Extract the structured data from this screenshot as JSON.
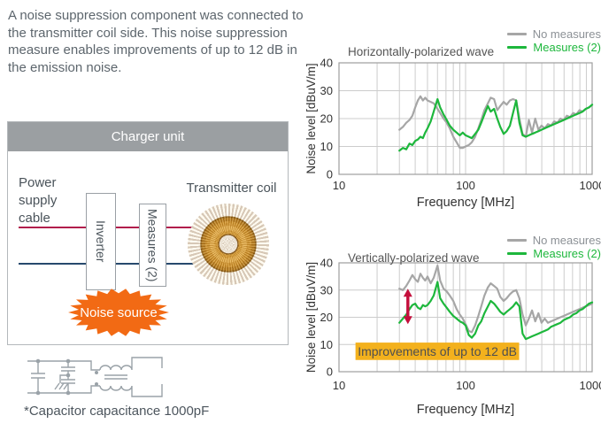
{
  "intro": {
    "text": "A noise suppression component was connected to the transmitter coil side. This noise suppression measure enables improvements of up to 12 dB in the emission noise."
  },
  "diagram": {
    "header": "Charger unit",
    "power_label_lines": [
      "Power",
      "supply",
      "cable"
    ],
    "inverter_label": "Inverter",
    "measures_label": "Measures (2)",
    "transmitter_label": "Transmitter coil",
    "noise_label": "Noise source"
  },
  "schematic": {
    "caption": "*Capacitor capacitance 1000pF"
  },
  "colors": {
    "header_bg": "#9b9fa2",
    "wire_top": "#b11e4c",
    "wire_bottom": "#27496d",
    "noise_orange": "#f26a14",
    "coil_gold": "#d8952e",
    "gray_series": "#a6a6a6",
    "green_series": "#1db73c",
    "arrow_red": "#c40f3c",
    "callout_amber": "#f3b11d",
    "grid": "#cccccc",
    "plot_border": "#9e9e9e",
    "axis_text": "#333333"
  },
  "chart_data": [
    {
      "type": "line",
      "title": "Horizontally-polarized wave",
      "xlabel": "Frequency [MHz]",
      "ylabel": "Noise level [dBuV/m]",
      "xscale": "log",
      "xlim": [
        10,
        1000
      ],
      "ylim": [
        0,
        40
      ],
      "xticks": [
        10,
        100,
        1000
      ],
      "yticks": [
        0,
        10,
        20,
        30,
        40
      ],
      "grid": true,
      "legend_position": "top-right",
      "x": [
        30,
        32,
        34,
        36,
        38,
        40,
        42,
        44,
        46,
        48,
        50,
        53,
        56,
        60,
        63,
        67,
        71,
        75,
        80,
        85,
        90,
        95,
        100,
        106,
        112,
        119,
        126,
        133,
        141,
        150,
        158,
        168,
        178,
        188,
        200,
        211,
        224,
        237,
        251,
        266,
        282,
        299,
        316,
        335,
        355,
        376,
        398,
        422,
        447,
        473,
        501,
        531,
        562,
        596,
        631,
        668,
        708,
        750,
        794,
        841,
        891,
        944,
        1000
      ],
      "series": [
        {
          "name": "No measures",
          "color": "#a6a6a6",
          "y": [
            16,
            17,
            18.5,
            19.5,
            21,
            24,
            26.5,
            28,
            26.5,
            27.5,
            26.5,
            26,
            25.5,
            23.5,
            22,
            20,
            18.5,
            16.5,
            13.5,
            11.5,
            9.5,
            9.5,
            10,
            10.5,
            11.5,
            13.5,
            16.5,
            19.5,
            23,
            25.5,
            27.5,
            27,
            23,
            24.5,
            26,
            25,
            26.5,
            27,
            26.5,
            20,
            14.5,
            13.5,
            19.5,
            15,
            20,
            16,
            17.5,
            16.5,
            18,
            17.5,
            19,
            18.5,
            20,
            19.5,
            21,
            20.5,
            22,
            21.5,
            23,
            22.5,
            23.5,
            24,
            25
          ]
        },
        {
          "name": "Measures (2)",
          "color": "#1db73c",
          "y": [
            8.5,
            9.5,
            9,
            11,
            10.5,
            12,
            12.5,
            13.5,
            13,
            15,
            16.5,
            19,
            22.5,
            27,
            24,
            21.5,
            19.5,
            17.5,
            16,
            15,
            14,
            15,
            14,
            13.5,
            13,
            14.5,
            16,
            18.5,
            21.5,
            24.5,
            22.5,
            23.5,
            20,
            17,
            14.5,
            15.5,
            17.5,
            22,
            26.5,
            18.5,
            14,
            13.5,
            14,
            14.5,
            15,
            15.5,
            16,
            16.5,
            17,
            17.5,
            18,
            18.5,
            19,
            19.5,
            20,
            20.5,
            21,
            21.5,
            22,
            22.5,
            23.5,
            24,
            25
          ]
        }
      ]
    },
    {
      "type": "line",
      "title": "Vertically-polarized wave",
      "xlabel": "Frequency [MHz]",
      "ylabel": "Noise level [dBuV/m]",
      "xscale": "log",
      "xlim": [
        10,
        1000
      ],
      "ylim": [
        0,
        40
      ],
      "xticks": [
        10,
        100,
        1000
      ],
      "yticks": [
        0,
        10,
        20,
        30,
        40
      ],
      "grid": true,
      "legend_position": "top-right",
      "x": [
        30,
        32,
        34,
        36,
        38,
        40,
        42,
        44,
        46,
        48,
        50,
        53,
        56,
        60,
        63,
        67,
        71,
        75,
        80,
        85,
        90,
        95,
        100,
        106,
        112,
        119,
        126,
        133,
        141,
        150,
        158,
        168,
        178,
        188,
        200,
        211,
        224,
        237,
        251,
        266,
        282,
        299,
        316,
        335,
        355,
        376,
        398,
        422,
        447,
        473,
        501,
        531,
        562,
        596,
        631,
        668,
        708,
        750,
        794,
        841,
        891,
        944,
        1000
      ],
      "series": [
        {
          "name": "No measures",
          "color": "#a6a6a6",
          "y": [
            30.5,
            30,
            31.5,
            33.5,
            35.5,
            34,
            33,
            36,
            34.5,
            33.5,
            35,
            32.5,
            34.5,
            39,
            33.5,
            30.5,
            29.5,
            28,
            26,
            23,
            21,
            19.5,
            17.5,
            15,
            14.5,
            17,
            20.5,
            24,
            28,
            31,
            32.5,
            31.5,
            30.5,
            27.5,
            26,
            27,
            28.5,
            29.5,
            30,
            27,
            21,
            17,
            19.5,
            22.5,
            18.5,
            21.5,
            18,
            19.5,
            18,
            18.5,
            19,
            19.5,
            20,
            20.5,
            21,
            21.5,
            22,
            22.5,
            23,
            23.5,
            24,
            24.5,
            25
          ]
        },
        {
          "name": "Measures (2)",
          "color": "#1db73c",
          "y": [
            18,
            19.5,
            21,
            23,
            24.5,
            25,
            23.5,
            23,
            24.5,
            24,
            24.5,
            26,
            28,
            33,
            27,
            25,
            23.5,
            22,
            20.5,
            19.5,
            18.5,
            18,
            17,
            13.5,
            12.5,
            14,
            17,
            18.5,
            21.5,
            24,
            26,
            25,
            23.5,
            22,
            21,
            22,
            23,
            24,
            25.5,
            24,
            14,
            12,
            12.5,
            13,
            13.5,
            14,
            14.5,
            15,
            15.5,
            16.5,
            17,
            17.5,
            18,
            19,
            19.5,
            20,
            21,
            21.5,
            22.5,
            23,
            24,
            25,
            25.5
          ]
        }
      ],
      "annotations": {
        "arrow": {
          "freq": 35,
          "value_from": 17.5,
          "value_to": 30.5,
          "color": "#c40f3c"
        },
        "callout": {
          "text": "Improvements of up to 12 dB",
          "bg_color": "#f3b11d",
          "text_color": "#4f4f4f",
          "freq_range": [
            13.5,
            265
          ],
          "value_range": [
            4.3,
            10.7
          ]
        }
      }
    }
  ]
}
